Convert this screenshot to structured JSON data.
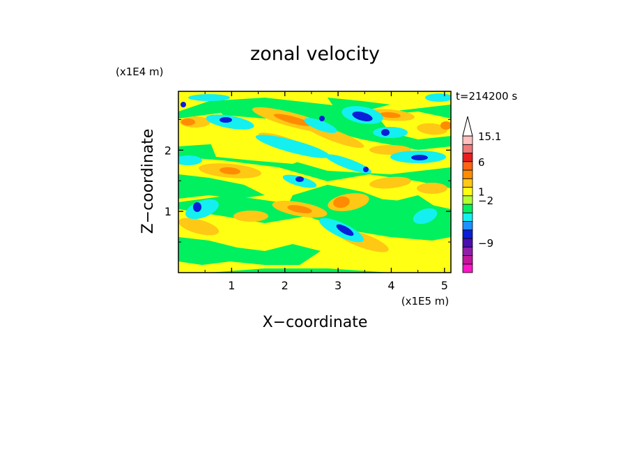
{
  "chart_data": {
    "type": "heatmap",
    "title": "zonal velocity",
    "xlabel": "X−coordinate",
    "ylabel": "Z−coordinate",
    "x_scale_label": "(x1E5 m)",
    "y_scale_label": "(x1E4 m)",
    "time_label": "t=214200 s",
    "xlim": [
      0,
      5.12
    ],
    "ylim": [
      0,
      2.96
    ],
    "x_ticks": [
      {
        "value": 1,
        "label": "1"
      },
      {
        "value": 2,
        "label": "2"
      },
      {
        "value": 3,
        "label": "3"
      },
      {
        "value": 4,
        "label": "4"
      },
      {
        "value": 5,
        "label": "5"
      }
    ],
    "y_ticks": [
      {
        "value": 1,
        "label": "1"
      },
      {
        "value": 2,
        "label": "2"
      }
    ],
    "colorbar": {
      "levels": [
        {
          "color": "#ff14c8"
        },
        {
          "color": "#c0179a"
        },
        {
          "color": "#8f1ea8"
        },
        {
          "color": "#4a0fb0"
        },
        {
          "color": "#0a1ed8"
        },
        {
          "color": "#1e90ff"
        },
        {
          "color": "#14f0f0"
        },
        {
          "color": "#00f060"
        },
        {
          "color": "#b4ff32"
        },
        {
          "color": "#ffff14"
        },
        {
          "color": "#ffc814"
        },
        {
          "color": "#ff8c00"
        },
        {
          "color": "#ff6414"
        },
        {
          "color": "#e61e1e"
        },
        {
          "color": "#f07878"
        },
        {
          "color": "#ffc0c0"
        },
        {
          "color": "#ffffff"
        }
      ],
      "labels": [
        {
          "value": 15.1,
          "label": "15.1"
        },
        {
          "value": 6,
          "label": "6"
        },
        {
          "value": 1,
          "label": "1"
        },
        {
          "value": -2,
          "label": "−2"
        },
        {
          "value": -9,
          "label": "−9"
        }
      ]
    },
    "field_palette": {
      "yellow": "#ffff14",
      "green": "#00f060",
      "orange": "#ffc814",
      "dark_orange": "#ff8c00",
      "cyan": "#14f0f0",
      "blue": "#0a1ed8"
    }
  }
}
